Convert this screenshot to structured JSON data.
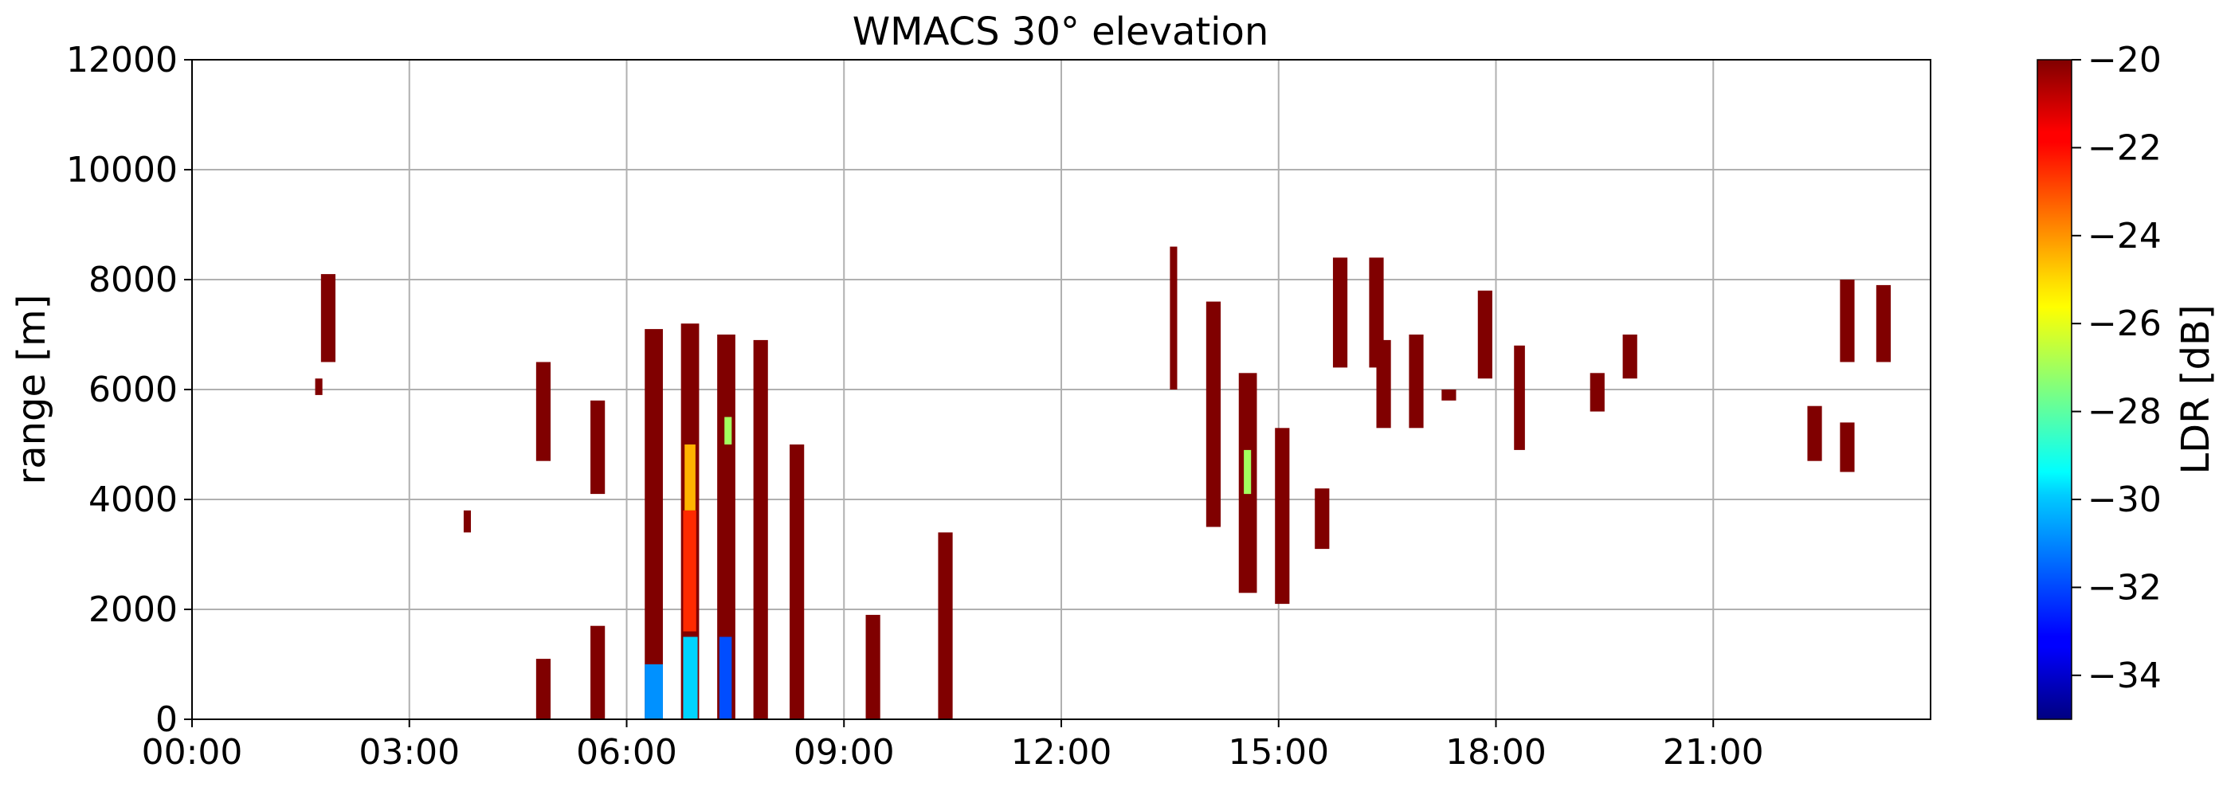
{
  "chart_data": {
    "type": "heatmap",
    "title": "WMACS 30° elevation",
    "xlabel": "",
    "ylabel": "range [m]",
    "xlim": [
      0,
      24
    ],
    "ylim": [
      0,
      12000
    ],
    "x_ticks": [
      {
        "value": 0,
        "label": "00:00"
      },
      {
        "value": 3,
        "label": "03:00"
      },
      {
        "value": 6,
        "label": "06:00"
      },
      {
        "value": 9,
        "label": "09:00"
      },
      {
        "value": 12,
        "label": "12:00"
      },
      {
        "value": 15,
        "label": "15:00"
      },
      {
        "value": 18,
        "label": "18:00"
      },
      {
        "value": 21,
        "label": "21:00"
      }
    ],
    "y_ticks": [
      {
        "value": 0,
        "label": "0"
      },
      {
        "value": 2000,
        "label": "2000"
      },
      {
        "value": 4000,
        "label": "4000"
      },
      {
        "value": 6000,
        "label": "6000"
      },
      {
        "value": 8000,
        "label": "8000"
      },
      {
        "value": 10000,
        "label": "10000"
      },
      {
        "value": 12000,
        "label": "12000"
      }
    ],
    "grid": true,
    "colorbar": {
      "label": "LDR [dB]",
      "range": [
        -35,
        -20
      ],
      "colormap": "jet",
      "ticks": [
        {
          "value": -20,
          "label": "−20"
        },
        {
          "value": -22,
          "label": "−22"
        },
        {
          "value": -24,
          "label": "−24"
        },
        {
          "value": -26,
          "label": "−26"
        },
        {
          "value": -28,
          "label": "−28"
        },
        {
          "value": -30,
          "label": "−30"
        },
        {
          "value": -32,
          "label": "−32"
        },
        {
          "value": -34,
          "label": "−34"
        }
      ]
    },
    "echo_regions": [
      {
        "t0": 1.78,
        "t1": 1.98,
        "r0": 6500,
        "r1": 8100,
        "ldr": -20
      },
      {
        "t0": 1.7,
        "t1": 1.8,
        "r0": 5900,
        "r1": 6200,
        "ldr": -20
      },
      {
        "t0": 3.75,
        "t1": 3.85,
        "r0": 3400,
        "r1": 3800,
        "ldr": -20
      },
      {
        "t0": 4.75,
        "t1": 4.95,
        "r0": 4700,
        "r1": 6500,
        "ldr": -20
      },
      {
        "t0": 4.75,
        "t1": 4.95,
        "r0": 0,
        "r1": 1100,
        "ldr": -20
      },
      {
        "t0": 5.5,
        "t1": 5.7,
        "r0": 4100,
        "r1": 5800,
        "ldr": -20
      },
      {
        "t0": 5.5,
        "t1": 5.7,
        "r0": 0,
        "r1": 1700,
        "ldr": -20
      },
      {
        "t0": 6.25,
        "t1": 6.5,
        "r0": 0,
        "r1": 7100,
        "ldr": -20
      },
      {
        "t0": 6.25,
        "t1": 6.5,
        "r0": 0,
        "r1": 1000,
        "ldr": -31
      },
      {
        "t0": 6.75,
        "t1": 7.0,
        "r0": 0,
        "r1": 7200,
        "ldr": -20
      },
      {
        "t0": 6.78,
        "t1": 6.96,
        "r0": 1600,
        "r1": 3800,
        "ldr": -22.5
      },
      {
        "t0": 6.8,
        "t1": 6.95,
        "r0": 3800,
        "r1": 5000,
        "ldr": -24.5
      },
      {
        "t0": 6.78,
        "t1": 6.98,
        "r0": 0,
        "r1": 1500,
        "ldr": -30
      },
      {
        "t0": 7.25,
        "t1": 7.5,
        "r0": 0,
        "r1": 7000,
        "ldr": -20
      },
      {
        "t0": 7.28,
        "t1": 7.45,
        "r0": 0,
        "r1": 1500,
        "ldr": -32
      },
      {
        "t0": 7.35,
        "t1": 7.45,
        "r0": 5000,
        "r1": 5500,
        "ldr": -27
      },
      {
        "t0": 7.75,
        "t1": 7.95,
        "r0": 0,
        "r1": 6900,
        "ldr": -20
      },
      {
        "t0": 8.25,
        "t1": 8.45,
        "r0": 0,
        "r1": 5000,
        "ldr": -20
      },
      {
        "t0": 9.3,
        "t1": 9.5,
        "r0": 0,
        "r1": 1900,
        "ldr": -20
      },
      {
        "t0": 10.3,
        "t1": 10.5,
        "r0": 0,
        "r1": 3400,
        "ldr": -20
      },
      {
        "t0": 13.5,
        "t1": 13.6,
        "r0": 6000,
        "r1": 8600,
        "ldr": -20
      },
      {
        "t0": 14.0,
        "t1": 14.2,
        "r0": 3500,
        "r1": 7600,
        "ldr": -20
      },
      {
        "t0": 14.45,
        "t1": 14.7,
        "r0": 2300,
        "r1": 6300,
        "ldr": -20
      },
      {
        "t0": 14.52,
        "t1": 14.62,
        "r0": 4100,
        "r1": 4900,
        "ldr": -27
      },
      {
        "t0": 14.95,
        "t1": 15.15,
        "r0": 2100,
        "r1": 5300,
        "ldr": -20
      },
      {
        "t0": 15.5,
        "t1": 15.7,
        "r0": 3100,
        "r1": 4200,
        "ldr": -20
      },
      {
        "t0": 15.75,
        "t1": 15.95,
        "r0": 6400,
        "r1": 8400,
        "ldr": -20
      },
      {
        "t0": 16.25,
        "t1": 16.45,
        "r0": 6400,
        "r1": 8400,
        "ldr": -20
      },
      {
        "t0": 16.35,
        "t1": 16.55,
        "r0": 5300,
        "r1": 6900,
        "ldr": -20
      },
      {
        "t0": 16.8,
        "t1": 17.0,
        "r0": 5300,
        "r1": 7000,
        "ldr": -20
      },
      {
        "t0": 17.25,
        "t1": 17.45,
        "r0": 5800,
        "r1": 6000,
        "ldr": -20
      },
      {
        "t0": 17.75,
        "t1": 17.95,
        "r0": 6200,
        "r1": 7800,
        "ldr": -20
      },
      {
        "t0": 18.25,
        "t1": 18.4,
        "r0": 4900,
        "r1": 6800,
        "ldr": -20
      },
      {
        "t0": 19.3,
        "t1": 19.5,
        "r0": 5600,
        "r1": 6300,
        "ldr": -20
      },
      {
        "t0": 19.75,
        "t1": 19.95,
        "r0": 6200,
        "r1": 7000,
        "ldr": -20
      },
      {
        "t0": 22.3,
        "t1": 22.5,
        "r0": 4700,
        "r1": 5700,
        "ldr": -20
      },
      {
        "t0": 22.75,
        "t1": 22.95,
        "r0": 4500,
        "r1": 5400,
        "ldr": -20
      },
      {
        "t0": 22.75,
        "t1": 22.95,
        "r0": 6500,
        "r1": 8000,
        "ldr": -20
      },
      {
        "t0": 23.25,
        "t1": 23.45,
        "r0": 6500,
        "r1": 7900,
        "ldr": -20
      }
    ]
  }
}
